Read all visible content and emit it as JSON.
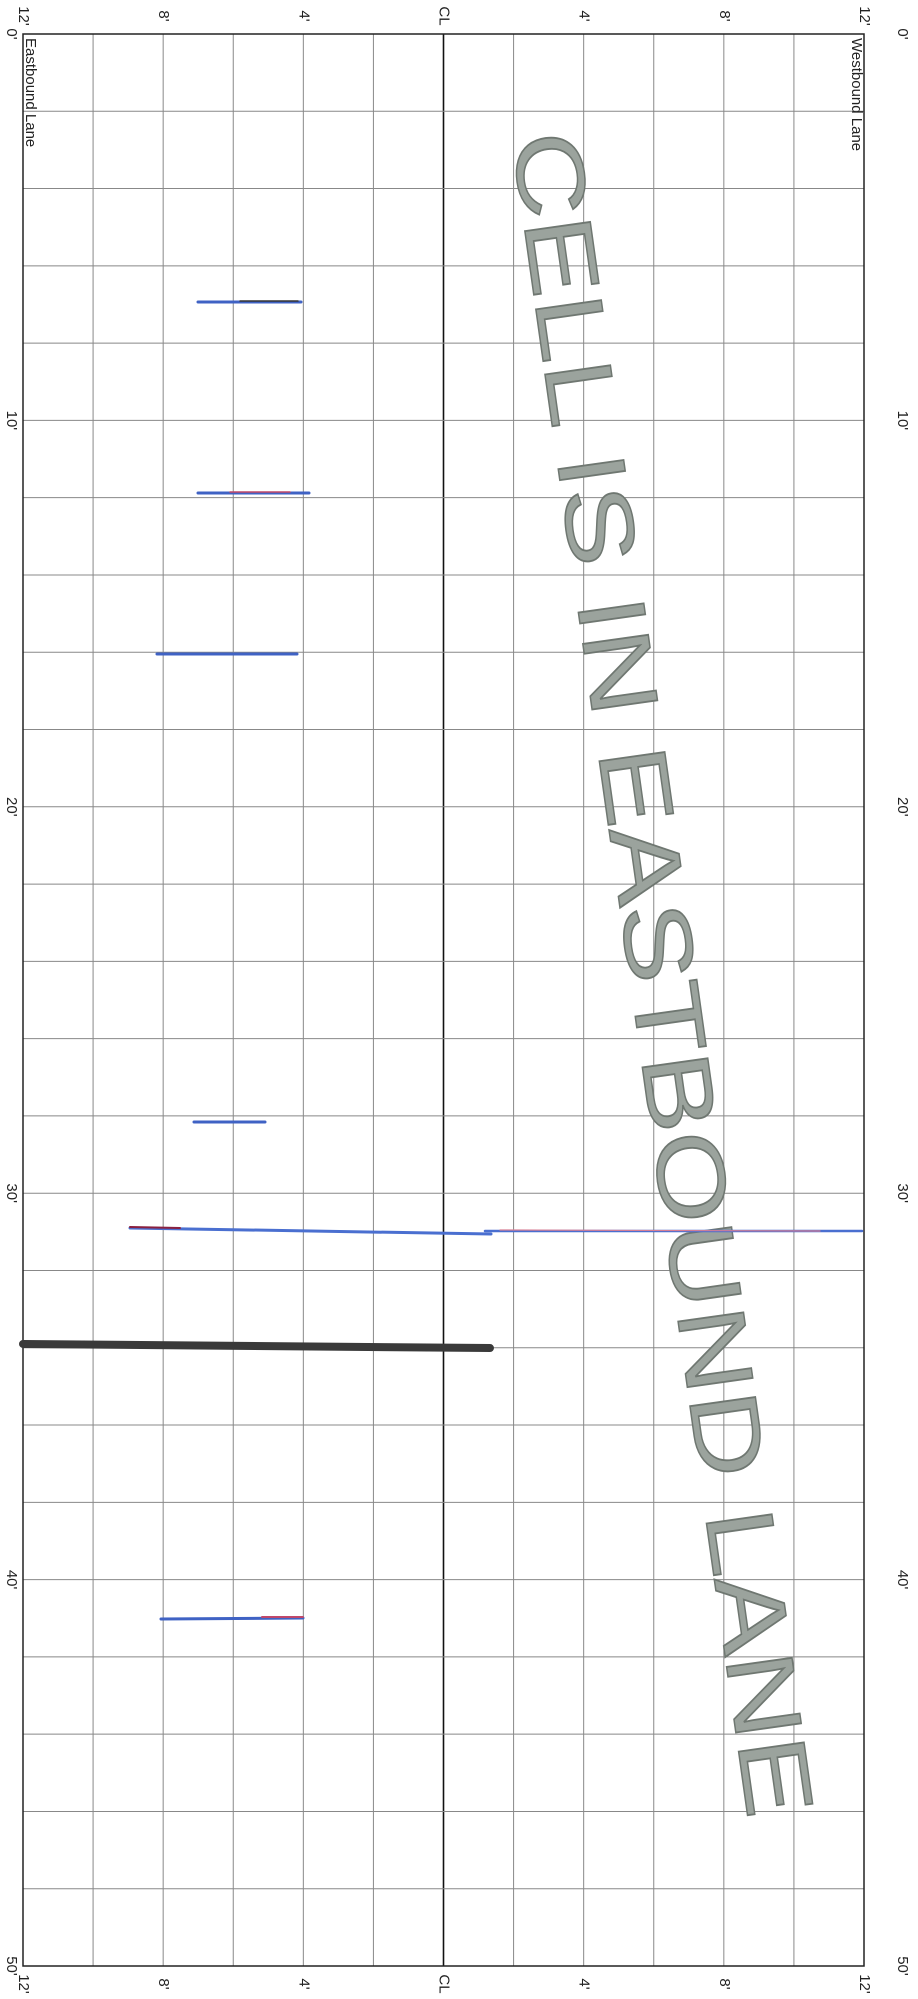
{
  "top_labels": [
    "12'",
    "8'",
    "4'",
    "CL",
    "4'",
    "8'",
    "12'"
  ],
  "bottom_labels": [
    "12'",
    "8'",
    "4'",
    "CL",
    "4'",
    "8'",
    "12'"
  ],
  "left_stations": [
    "0'",
    "10'",
    "20'",
    "30'",
    "40'",
    "50'"
  ],
  "right_stations": [
    "0'",
    "10'",
    "20'",
    "30'",
    "40'",
    "50'"
  ],
  "lanes": {
    "eastbound": "Eastbound Lane",
    "westbound": "Westbound Lane"
  },
  "stamp": "CELL IS IN EASTBOUND LANE"
}
